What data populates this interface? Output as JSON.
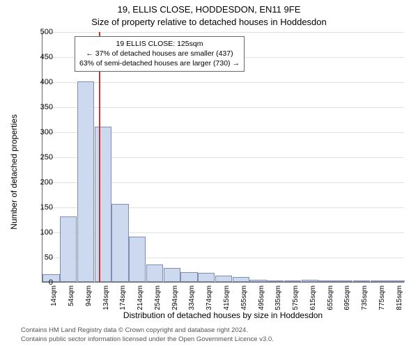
{
  "chart": {
    "type": "histogram",
    "title_line1": "19, ELLIS CLOSE, HODDESDON, EN11 9FE",
    "title_line2": "Size of property relative to detached houses in Hoddesdon",
    "title_fontsize": 13,
    "ylabel": "Number of detached properties",
    "xlabel": "Distribution of detached houses by size in Hoddesdon",
    "label_fontsize": 12,
    "background_color": "#ffffff",
    "grid_color": "#e0e0e0",
    "axis_color": "#666666",
    "bar_fill": "#cdd9ee",
    "bar_border": "#808db3",
    "marker_color": "#d82c2c",
    "marker_value_sqm": 125,
    "ylim": [
      0,
      500
    ],
    "ytick_step": 50,
    "tick_fontsize": 11,
    "xtick_fontsize": 10,
    "x_categories": [
      "14sqm",
      "54sqm",
      "94sqm",
      "134sqm",
      "174sqm",
      "214sqm",
      "254sqm",
      "294sqm",
      "334sqm",
      "374sqm",
      "415sqm",
      "455sqm",
      "495sqm",
      "535sqm",
      "575sqm",
      "615sqm",
      "655sqm",
      "695sqm",
      "735sqm",
      "775sqm",
      "815sqm"
    ],
    "values": [
      15,
      130,
      400,
      310,
      155,
      90,
      35,
      28,
      20,
      18,
      12,
      10,
      4,
      2,
      2,
      4,
      0,
      2,
      0,
      0,
      2
    ],
    "callout": {
      "line1": "19 ELLIS CLOSE: 125sqm",
      "line2": "← 37% of detached houses are smaller (437)",
      "line3": "63% of semi-detached houses are larger (730) →",
      "border_color": "#666666",
      "background_color": "#ffffff",
      "fontsize": 10.5
    },
    "footer_line1": "Contains HM Land Registry data © Crown copyright and database right 2024.",
    "footer_line2": "Contains public sector information licensed under the Open Government Licence v3.0.",
    "footer_color": "#555555",
    "footer_fontsize": 9.5
  }
}
